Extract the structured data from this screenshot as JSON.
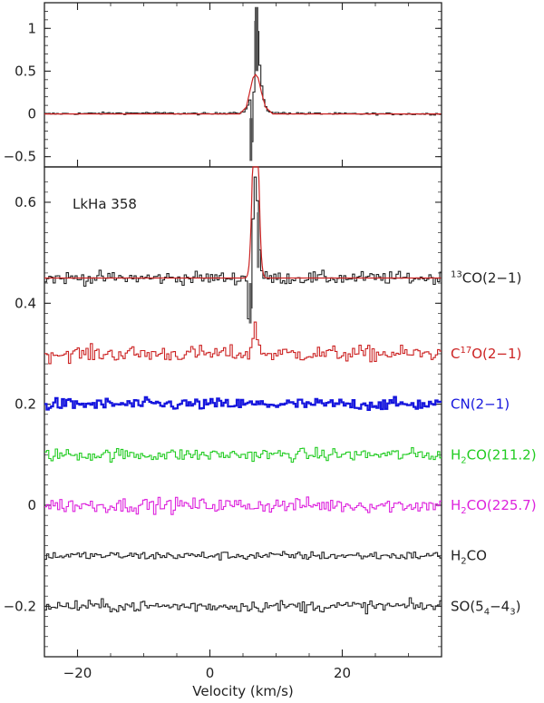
{
  "chart_data": [
    {
      "type": "line",
      "panel": "top",
      "xlim": [
        -25,
        35
      ],
      "ylim": [
        -0.62,
        1.3
      ],
      "y_ticks": [
        -0.5,
        0,
        0.5,
        1
      ],
      "y_tick_labels": [
        "−0.5",
        "0",
        "0.5",
        "1"
      ],
      "series": [
        {
          "color": "#222222",
          "style": "histogram",
          "points": [
            [
              -25,
              0.0
            ],
            [
              -10,
              0.01
            ],
            [
              0,
              0.0
            ],
            [
              5,
              0.02
            ],
            [
              5.5,
              0.05
            ],
            [
              5.8,
              0.12
            ],
            [
              6.0,
              0.4
            ],
            [
              6.2,
              -0.55
            ],
            [
              6.5,
              -0.1
            ],
            [
              6.8,
              0.6
            ],
            [
              7.0,
              1.25
            ],
            [
              7.3,
              0.9
            ],
            [
              7.6,
              0.5
            ],
            [
              8.0,
              0.2
            ],
            [
              8.6,
              0.05
            ],
            [
              9.5,
              0.01
            ],
            [
              20,
              0.0
            ],
            [
              35,
              0.0
            ]
          ]
        },
        {
          "color": "#cc2222",
          "style": "line",
          "points": [
            [
              -25,
              0.0
            ],
            [
              4.5,
              0.0
            ],
            [
              5.5,
              0.08
            ],
            [
              6.0,
              0.25
            ],
            [
              6.5,
              0.42
            ],
            [
              6.9,
              0.46
            ],
            [
              7.3,
              0.42
            ],
            [
              7.8,
              0.25
            ],
            [
              8.4,
              0.08
            ],
            [
              9.5,
              0.0
            ],
            [
              35,
              0.0
            ]
          ]
        }
      ]
    },
    {
      "type": "line",
      "panel": "bottom",
      "xlim": [
        -25,
        35
      ],
      "ylim": [
        -0.3,
        0.67
      ],
      "x_ticks": [
        -20,
        0,
        20
      ],
      "x_tick_labels": [
        "−20",
        "0",
        "20"
      ],
      "y_ticks": [
        -0.2,
        0,
        0.2,
        0.4,
        0.6
      ],
      "y_tick_labels": [
        "−0.2",
        "0",
        "0.2",
        "0.4",
        "0.6"
      ],
      "xlabel": "Velocity (km/s)",
      "annotation": "LkHa 358",
      "series": [
        {
          "label_main": "13",
          "label_rest": "CO(2−1)",
          "label_kind": "sup-first",
          "color": "#222222",
          "baseline": 0.45,
          "noise": 0.012,
          "peak": {
            "center": 6.9,
            "height": 0.2,
            "absorb": -0.09
          }
        },
        {
          "label_main": "C",
          "label_script": "17",
          "label_rest": "O(2−1)",
          "label_kind": "sup",
          "color": "#cc2222",
          "baseline": 0.3,
          "noise": 0.015,
          "peak": {
            "center": 6.9,
            "height": 0.05,
            "absorb": 0
          }
        },
        {
          "label_main": "CN(2−1)",
          "label_kind": "plain",
          "color": "#1515dd",
          "baseline": 0.2,
          "noise": 0.011,
          "peak": null
        },
        {
          "label_main": "H",
          "label_script": "2",
          "label_rest": "CO(211.2)",
          "label_kind": "sub",
          "color": "#22cc22",
          "baseline": 0.1,
          "noise": 0.012,
          "peak": null
        },
        {
          "label_main": "H",
          "label_script": "2",
          "label_rest": "CO(225.7)",
          "label_kind": "sub",
          "color": "#dd22dd",
          "baseline": 0.0,
          "noise": 0.014,
          "peak": null
        },
        {
          "label_main": "H",
          "label_script": "2",
          "label_rest": "CO",
          "label_kind": "sub",
          "color": "#222222",
          "baseline": -0.1,
          "noise": 0.008,
          "peak": null
        },
        {
          "label_main": "SO(5",
          "label_script": "4",
          "label_mid": "−4",
          "label_script2": "3",
          "label_rest": ")",
          "label_kind": "so",
          "color": "#222222",
          "baseline": -0.2,
          "noise": 0.011,
          "peak": null
        }
      ]
    }
  ]
}
